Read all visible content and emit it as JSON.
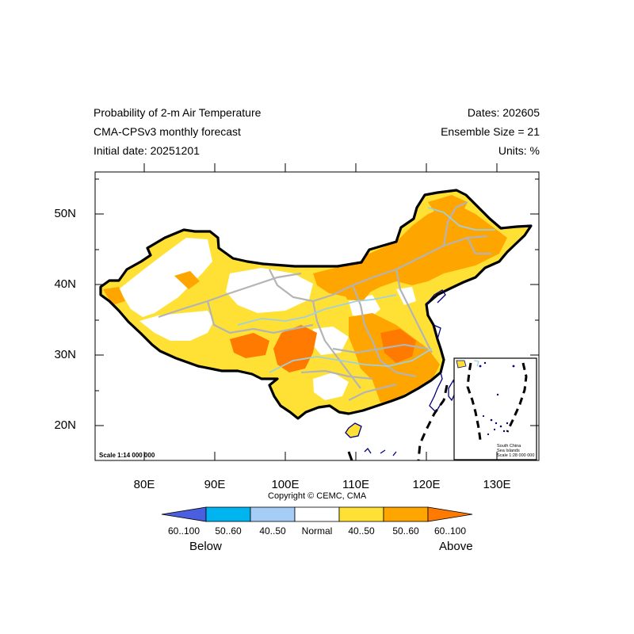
{
  "header": {
    "title_line1": "Probability of 2-m Air Temperature",
    "title_line2": "CMA-CPSv3 monthly forecast",
    "title_line3": "Initial date: 20251201",
    "dates": "Dates: 202605",
    "ensemble": "Ensemble Size = 21",
    "units": "Units: %"
  },
  "axes": {
    "y_ticks": [
      "50N",
      "40N",
      "30N",
      "20N"
    ],
    "x_ticks": [
      "80E",
      "90E",
      "100E",
      "110E",
      "120E",
      "130E"
    ],
    "lat_range": [
      15,
      56
    ],
    "lon_range": [
      73,
      135
    ]
  },
  "map": {
    "scale_text": "Scale 1:14 000 000",
    "copyright": "Copyright © CEMC, CMA",
    "inset": {
      "line1": "South China",
      "line2": "Sea Islands",
      "line3": "Scale 1:28 000 000"
    }
  },
  "legend": {
    "labels": [
      "60..100",
      "50..60",
      "40..50",
      "Normal",
      "40..50",
      "50..60",
      "60..100"
    ],
    "colors": [
      "#4a5fe0",
      "#00b4f0",
      "#a6cdf5",
      "#ffffff",
      "#ffe135",
      "#ffa500",
      "#ff7a00"
    ],
    "below_word": "Below",
    "above_word": "Above"
  },
  "colors": {
    "border": "#000000",
    "province_lines": "#b4b4b4",
    "rivers": "#a0d0e0",
    "coast": "#000080"
  }
}
